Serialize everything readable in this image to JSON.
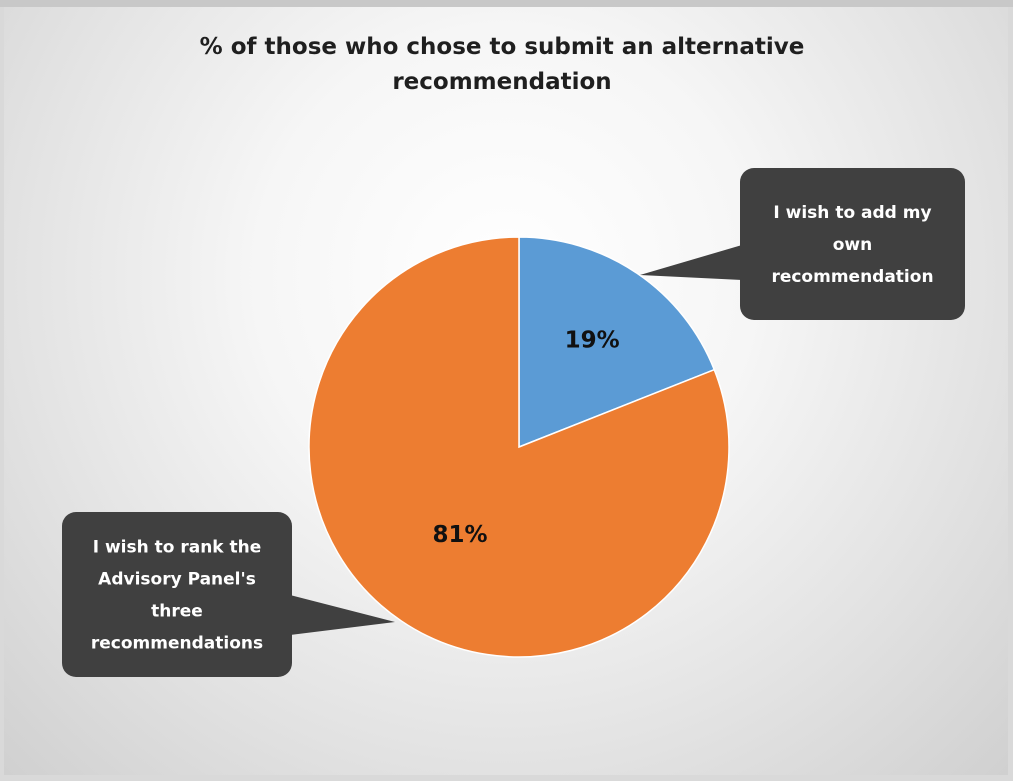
{
  "chart_data": {
    "type": "pie",
    "title": "% of those who chose to submit an alternative recommendation",
    "title_lines": [
      "% of those who chose to submit an alternative",
      "recommendation"
    ],
    "slices": [
      {
        "name": "I wish to add my own recommendation",
        "callout_lines": [
          "I wish to add my",
          "own",
          "recommendation"
        ],
        "value": 19,
        "label": "19%",
        "color": "#5b9bd5"
      },
      {
        "name": "I wish to rank the Advisory Panel's three recommendations",
        "callout_lines": [
          "I wish to rank the",
          "Advisory Panel's",
          "three",
          "recommendations"
        ],
        "value": 81,
        "label": "81%",
        "color": "#ed7d31"
      }
    ],
    "callout_color": "#404040",
    "legend": "none"
  }
}
